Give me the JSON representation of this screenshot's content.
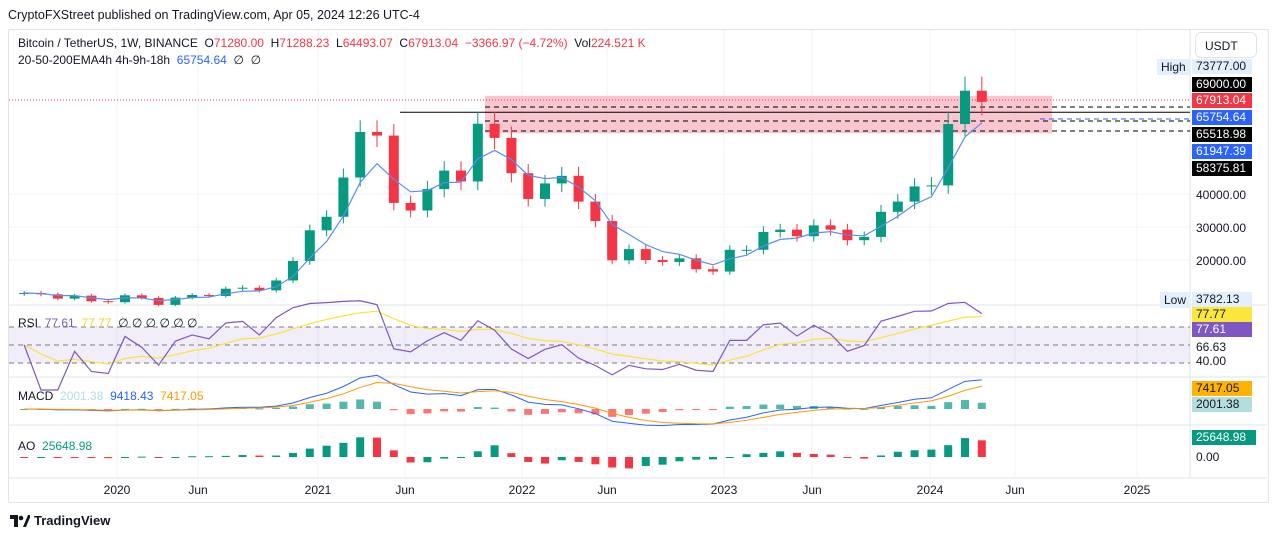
{
  "published": "CryptoFXStreet published on TradingView.com, Apr 05, 2024 12:26 UTC-4",
  "symbol": {
    "name": "Bitcoin / TetherUS, 1W, BINANCE",
    "o_label": "O",
    "o": "71280.00",
    "h_label": "H",
    "h": "71288.23",
    "l_label": "L",
    "l": "64493.07",
    "c_label": "C",
    "c": "67913.04",
    "change": "−3366.97 (−4.72%)",
    "vol_label": "Vol",
    "vol": "224.521 K"
  },
  "ema_legend": {
    "name": "20-50-200EMA4h 4h-9h-18h",
    "value": "65754.64",
    "extra1": "∅",
    "extra2": "∅"
  },
  "currency_button": "USDT",
  "price_axis": {
    "high_label": "High",
    "high": "73777.00",
    "low_label": "Low",
    "low": "3782.13",
    "tags": [
      {
        "value": "69000.00",
        "color": "#000000"
      },
      {
        "value": "67913.04",
        "color": "#f23645"
      },
      {
        "value": "65754.64",
        "color": "#2962ff"
      },
      {
        "value": "65518.98",
        "color": "#000000"
      },
      {
        "value": "61947.39",
        "color": "#2962ff"
      },
      {
        "value": "58375.81",
        "color": "#000000"
      }
    ],
    "ticks": [
      "40000.00",
      "30000.00",
      "20000.00"
    ]
  },
  "rsi": {
    "label": "RSI",
    "value": "77.61",
    "ma": "77.77",
    "extras": "∅ ∅ ∅ ∅ ∅ ∅",
    "axis": [
      "66.63",
      "40.00"
    ],
    "color": "#7e57c2",
    "ma_color": "#f7e53b"
  },
  "macd": {
    "label": "MACD",
    "hist": "2001.38",
    "macd": "9418.43",
    "signal": "7417.05"
  },
  "ao": {
    "label": "AO",
    "value": "25648.98",
    "zero": "0.00"
  },
  "time_axis": [
    "2020",
    "Jun",
    "2021",
    "Jun",
    "2022",
    "Jun",
    "2023",
    "Jun",
    "2024",
    "Jun",
    "2025"
  ],
  "brand": "TradingView",
  "chart_data": {
    "type": "candlestick",
    "scale": "linear",
    "x": [
      "2019-07",
      "2019-08",
      "2019-09",
      "2019-10",
      "2019-11",
      "2019-12",
      "2020-01",
      "2020-02",
      "2020-03",
      "2020-04",
      "2020-05",
      "2020-06",
      "2020-07",
      "2020-08",
      "2020-09",
      "2020-10",
      "2020-11",
      "2020-12",
      "2021-01",
      "2021-02",
      "2021-03",
      "2021-04",
      "2021-05",
      "2021-06",
      "2021-07",
      "2021-08",
      "2021-09",
      "2021-10",
      "2021-11",
      "2021-12",
      "2022-01",
      "2022-02",
      "2022-03",
      "2022-04",
      "2022-05",
      "2022-06",
      "2022-07",
      "2022-08",
      "2022-09",
      "2022-10",
      "2022-11",
      "2022-12",
      "2023-01",
      "2023-02",
      "2023-03",
      "2023-04",
      "2023-05",
      "2023-06",
      "2023-07",
      "2023-08",
      "2023-09",
      "2023-10",
      "2023-11",
      "2023-12",
      "2024-01",
      "2024-02",
      "2024-03",
      "2024-04"
    ],
    "close": [
      10000,
      9600,
      8300,
      9200,
      7500,
      7200,
      9300,
      8500,
      6400,
      8600,
      9400,
      9100,
      11300,
      11600,
      10800,
      13800,
      19700,
      29000,
      33100,
      45000,
      58800,
      57700,
      37300,
      35000,
      41500,
      47100,
      43800,
      61300,
      57000,
      46300,
      38500,
      43200,
      45500,
      37700,
      31800,
      19900,
      23300,
      20000,
      19400,
      20500,
      17200,
      16500,
      23100,
      23100,
      28500,
      29200,
      27200,
      30500,
      29200,
      26000,
      27000,
      34600,
      37700,
      42300,
      42600,
      61200,
      71300,
      67913
    ],
    "levels": {
      "resistance": 69000,
      "zone_top": 65518.98,
      "zone_bottom": 58375.81,
      "zone_mid": 61947.39,
      "ema": 65754.64,
      "last": 67913.04
    },
    "up_color": "#089981",
    "down_color": "#f23645",
    "ema_color": "#5b8def"
  }
}
